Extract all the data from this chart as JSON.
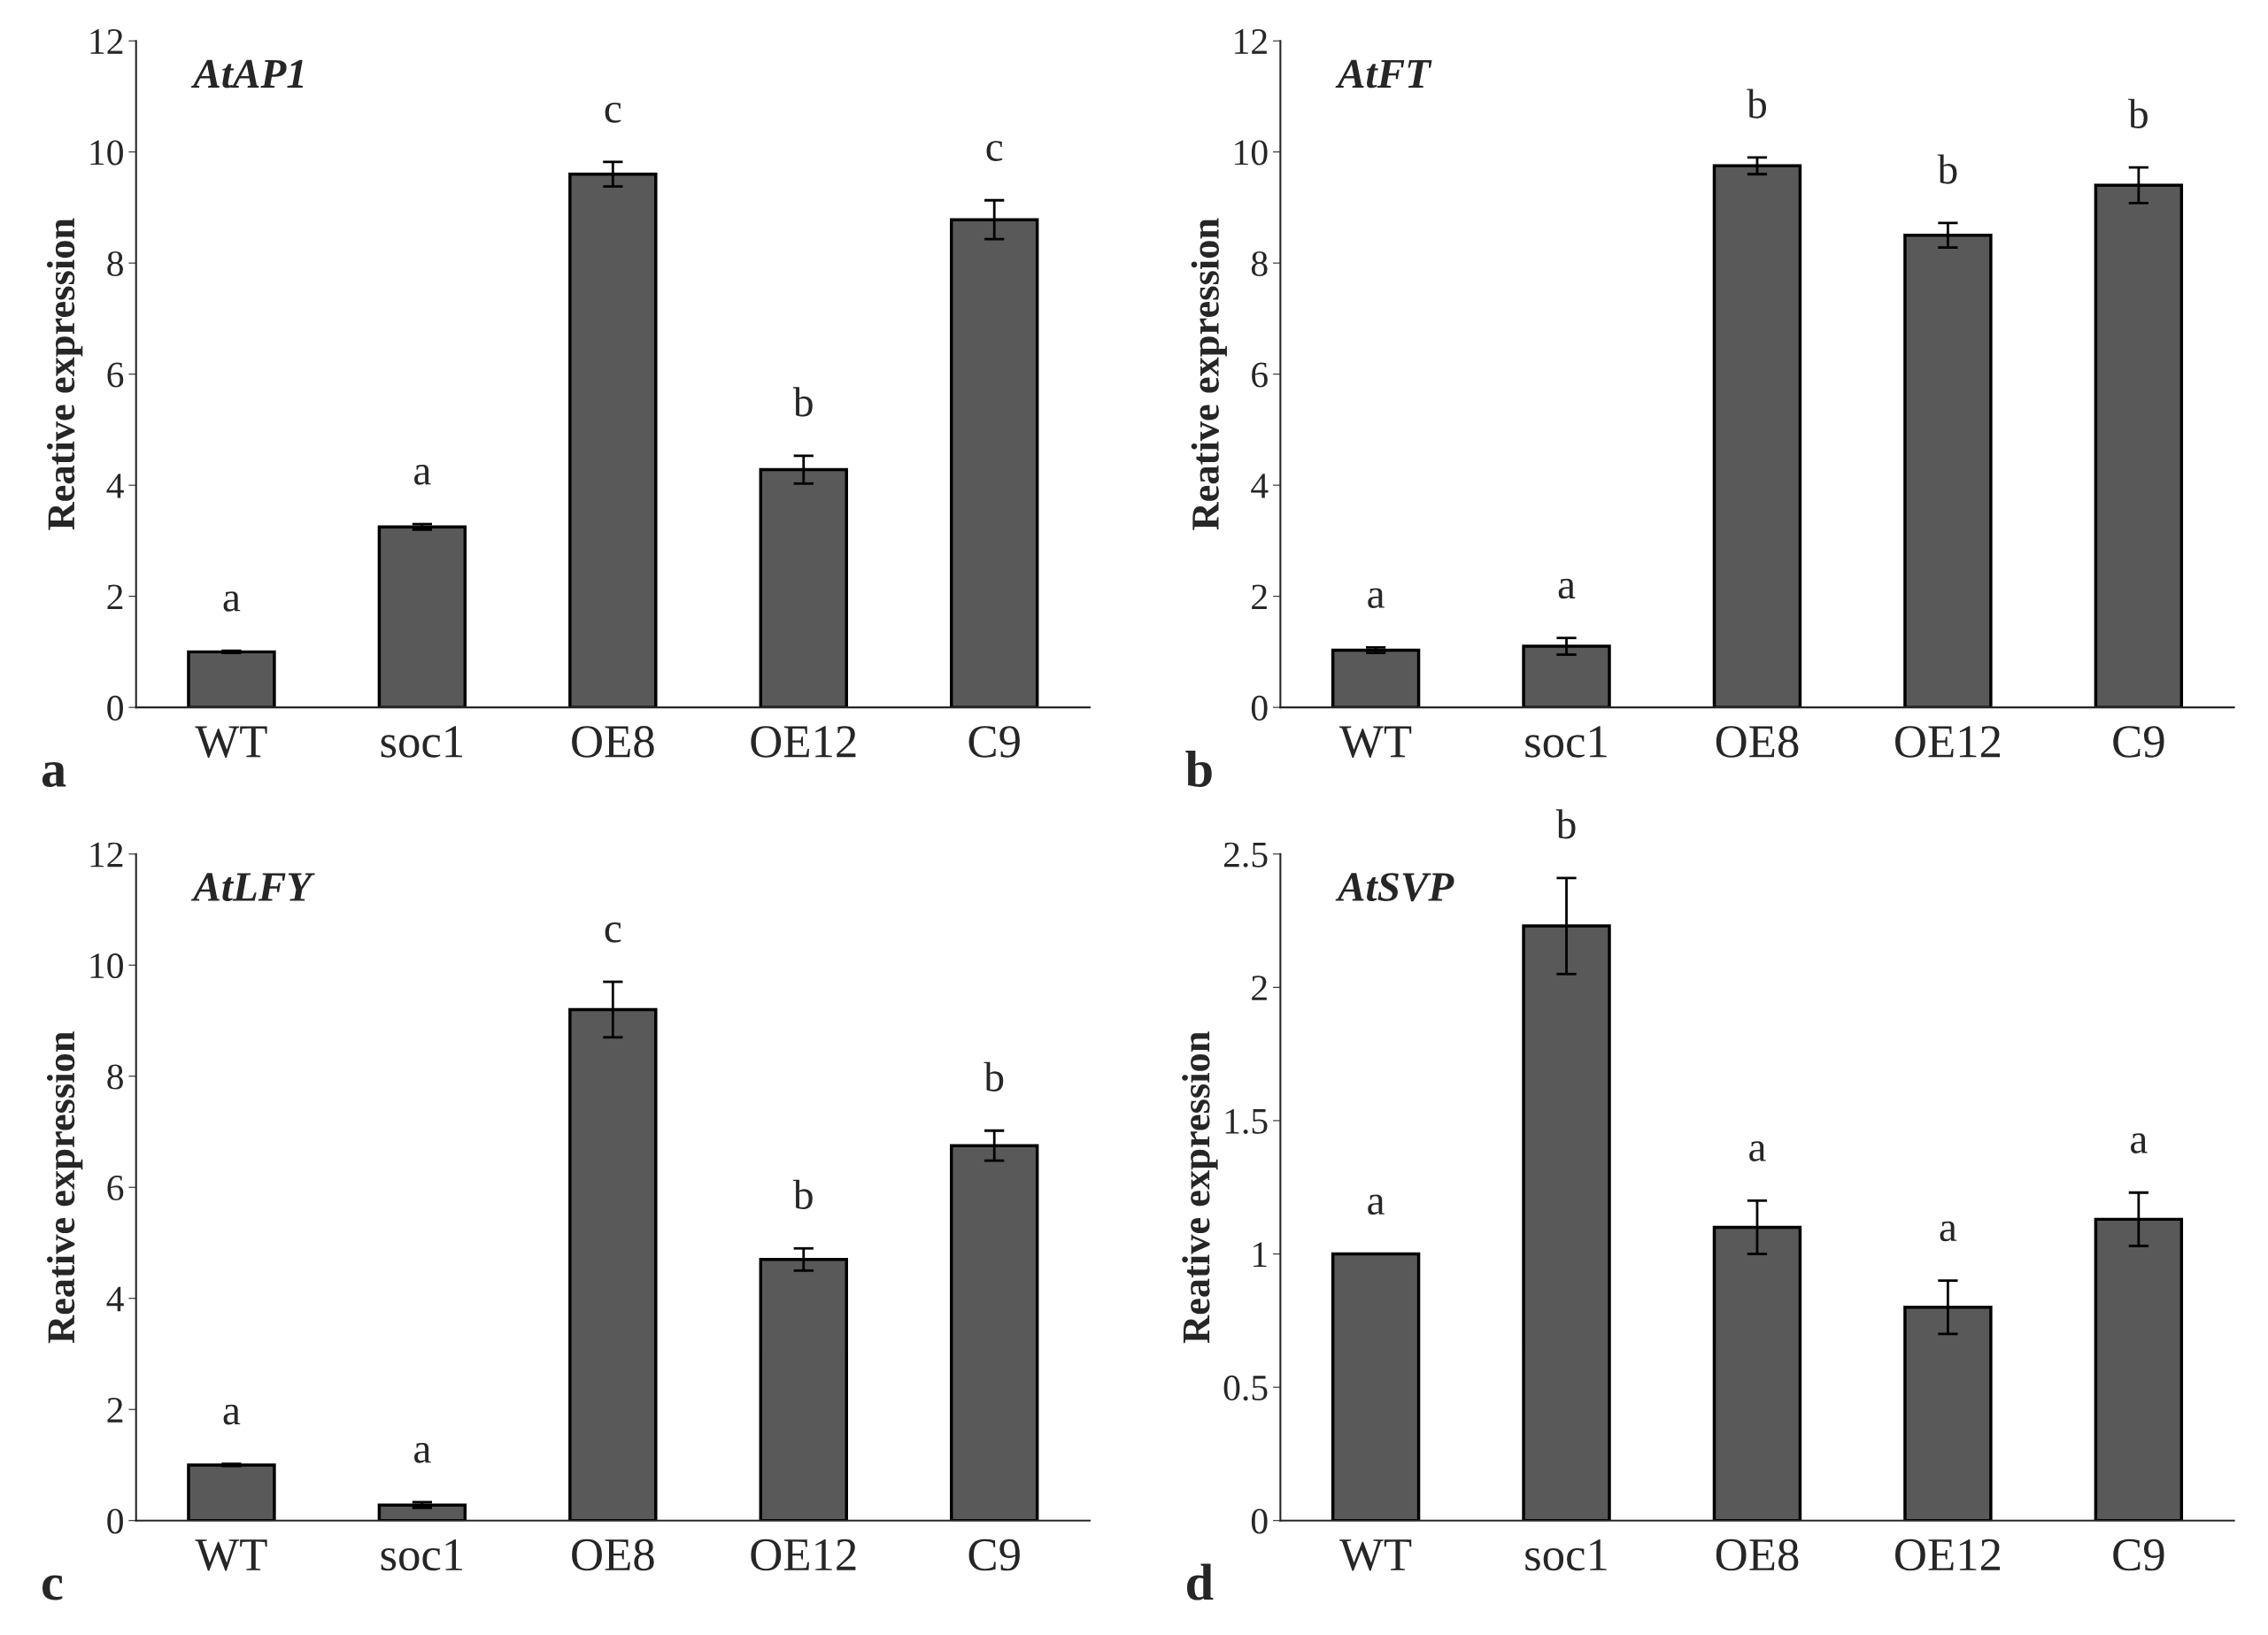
{
  "chart_data": [
    {
      "type": "bar",
      "title": "AtAP1",
      "ylabel": "Reative expression",
      "categories": [
        "WT",
        "soc1",
        "OE8",
        "OE12",
        "C9"
      ],
      "values": [
        1.0,
        3.25,
        9.6,
        4.28,
        8.78
      ],
      "errors": [
        0.02,
        0.05,
        0.22,
        0.25,
        0.35
      ],
      "color": "#595959",
      "ylim": [
        0,
        12
      ],
      "yticks": [
        0,
        2,
        4,
        6,
        8,
        10,
        12
      ],
      "grid": false,
      "annotations": [
        "a",
        "a",
        "c",
        "b",
        "c",
        "a"
      ]
    },
    {
      "type": "bar",
      "title": "AtFT",
      "ylabel": "Reative expression",
      "categories": [
        "WT",
        "soc1",
        "OE8",
        "OE12",
        "C9"
      ],
      "values": [
        1.03,
        1.1,
        9.75,
        8.5,
        9.4
      ],
      "errors": [
        0.05,
        0.15,
        0.15,
        0.22,
        0.32
      ],
      "color": "#595959",
      "ylim": [
        0,
        12
      ],
      "yticks": [
        0,
        2,
        4,
        6,
        8,
        10,
        12
      ],
      "grid": false,
      "annotations": [
        "a",
        "a",
        "b",
        "b",
        "b",
        "b"
      ]
    },
    {
      "type": "bar",
      "title": "AtLFY",
      "ylabel": "Reative expression",
      "categories": [
        "WT",
        "soc1",
        "OE8",
        "OE12",
        "C9"
      ],
      "values": [
        1.0,
        0.28,
        9.2,
        4.7,
        6.75
      ],
      "errors": [
        0.02,
        0.05,
        0.5,
        0.2,
        0.27
      ],
      "color": "#595959",
      "ylim": [
        0,
        12
      ],
      "yticks": [
        0,
        2,
        4,
        6,
        8,
        10,
        12
      ],
      "grid": false,
      "annotations": [
        "a",
        "a",
        "c",
        "b",
        "b",
        "c"
      ]
    },
    {
      "type": "bar",
      "title": "AtSVP",
      "ylabel": "Reative expression",
      "categories": [
        "WT",
        "soc1",
        "OE8",
        "OE12",
        "C9"
      ],
      "values": [
        1.0,
        2.23,
        1.1,
        0.8,
        1.13
      ],
      "errors": [
        0.0,
        0.18,
        0.1,
        0.1,
        0.1
      ],
      "color": "#595959",
      "ylim": [
        0,
        2.5
      ],
      "yticks": [
        0,
        0.5,
        1,
        1.5,
        2,
        2.5
      ],
      "grid": false,
      "annotations": [
        "a",
        "b",
        "a",
        "a",
        "a",
        "d"
      ]
    }
  ]
}
